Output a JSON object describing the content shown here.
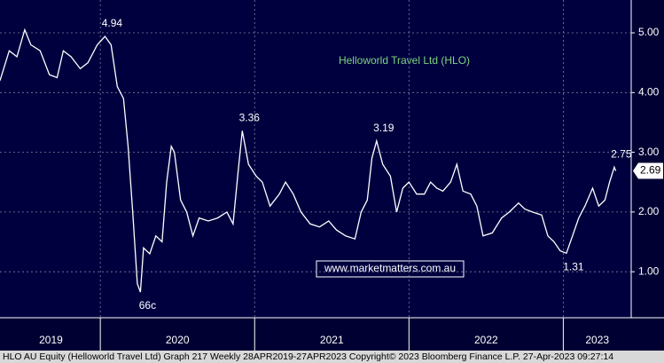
{
  "chart_data": {
    "type": "line",
    "title": "Helloworld Travel Ltd (HLO)",
    "link_text": "www.marketmatters.com.au",
    "footer": "HLO AU Equity (Helloworld Travel Ltd) Graph 217  Weekly 28APR2019-27APR2023 Copyright© 2023 Bloomberg Finance L.P. 27-Apr-2023 09:27:14",
    "x": [
      2019.35,
      2019.41,
      2019.46,
      2019.51,
      2019.55,
      2019.61,
      2019.67,
      2019.72,
      2019.76,
      2019.81,
      2019.87,
      2019.92,
      2019.98,
      2020.03,
      2020.07,
      2020.11,
      2020.15,
      2020.18,
      2020.21,
      2020.24,
      2020.26,
      2020.28,
      2020.32,
      2020.36,
      2020.4,
      2020.43,
      2020.46,
      2020.48,
      2020.52,
      2020.56,
      2020.6,
      2020.64,
      2020.7,
      2020.76,
      2020.82,
      2020.86,
      2020.89,
      2020.92,
      2020.96,
      2021.01,
      2021.05,
      2021.1,
      2021.16,
      2021.2,
      2021.25,
      2021.3,
      2021.36,
      2021.42,
      2021.48,
      2021.53,
      2021.59,
      2021.65,
      2021.69,
      2021.73,
      2021.76,
      2021.79,
      2021.83,
      2021.88,
      2021.92,
      2021.96,
      2022.0,
      2022.05,
      2022.1,
      2022.14,
      2022.18,
      2022.22,
      2022.27,
      2022.31,
      2022.35,
      2022.4,
      2022.44,
      2022.48,
      2022.54,
      2022.6,
      2022.65,
      2022.71,
      2022.75,
      2022.8,
      2022.86,
      2022.9,
      2022.94,
      2022.98,
      2023.02,
      2023.06,
      2023.1,
      2023.14,
      2023.19,
      2023.23,
      2023.27,
      2023.3,
      2023.33,
      2023.34
    ],
    "series": [
      {
        "name": "HLO",
        "color": "#ffffff",
        "values": [
          4.2,
          4.7,
          4.6,
          5.05,
          4.8,
          4.7,
          4.3,
          4.25,
          4.7,
          4.6,
          4.4,
          4.5,
          4.8,
          4.94,
          4.8,
          4.1,
          3.9,
          3.1,
          2.0,
          0.8,
          0.66,
          1.4,
          1.3,
          1.6,
          1.5,
          2.5,
          3.1,
          3.0,
          2.2,
          2.0,
          1.6,
          1.9,
          1.85,
          1.9,
          2.0,
          1.8,
          2.6,
          3.36,
          2.8,
          2.6,
          2.5,
          2.1,
          2.3,
          2.5,
          2.3,
          2.0,
          1.8,
          1.75,
          1.85,
          1.7,
          1.6,
          1.55,
          2.0,
          2.2,
          2.9,
          3.19,
          2.8,
          2.6,
          2.0,
          2.4,
          2.5,
          2.3,
          2.3,
          2.5,
          2.4,
          2.35,
          2.5,
          2.8,
          2.35,
          2.3,
          2.1,
          1.6,
          1.65,
          1.9,
          2.0,
          2.15,
          2.05,
          2.0,
          1.95,
          1.6,
          1.5,
          1.35,
          1.31,
          1.6,
          1.9,
          2.1,
          2.4,
          2.1,
          2.2,
          2.5,
          2.75,
          2.69
        ]
      }
    ],
    "annotations": [
      {
        "x": 2020.03,
        "value": 4.94,
        "label": "4.94",
        "placement": "above"
      },
      {
        "x": 2020.26,
        "value": 0.66,
        "label": "66c",
        "placement": "below"
      },
      {
        "x": 2020.92,
        "value": 3.36,
        "label": "3.36",
        "placement": "above"
      },
      {
        "x": 2021.79,
        "value": 3.19,
        "label": "3.19",
        "placement": "above"
      },
      {
        "x": 2023.02,
        "value": 1.31,
        "label": "1.31",
        "placement": "below"
      },
      {
        "x": 2023.33,
        "value": 2.75,
        "label": "2.75",
        "placement": "above"
      }
    ],
    "xlim": [
      2019.35,
      2023.44
    ],
    "xticks": [
      {
        "value": 2019.68,
        "label": "2019"
      },
      {
        "value": 2020.5,
        "label": "2020"
      },
      {
        "value": 2021.5,
        "label": "2021"
      },
      {
        "value": 2022.5,
        "label": "2022"
      },
      {
        "value": 2023.22,
        "label": "2023"
      }
    ],
    "ylim": [
      0.23,
      5.55
    ],
    "yticks": [
      {
        "value": 1,
        "label": "1.00"
      },
      {
        "value": 2,
        "label": "2.00"
      },
      {
        "value": 3,
        "label": "3.00"
      },
      {
        "value": 4,
        "label": "4.00"
      },
      {
        "value": 5,
        "label": "5.00"
      }
    ],
    "grid": true
  }
}
